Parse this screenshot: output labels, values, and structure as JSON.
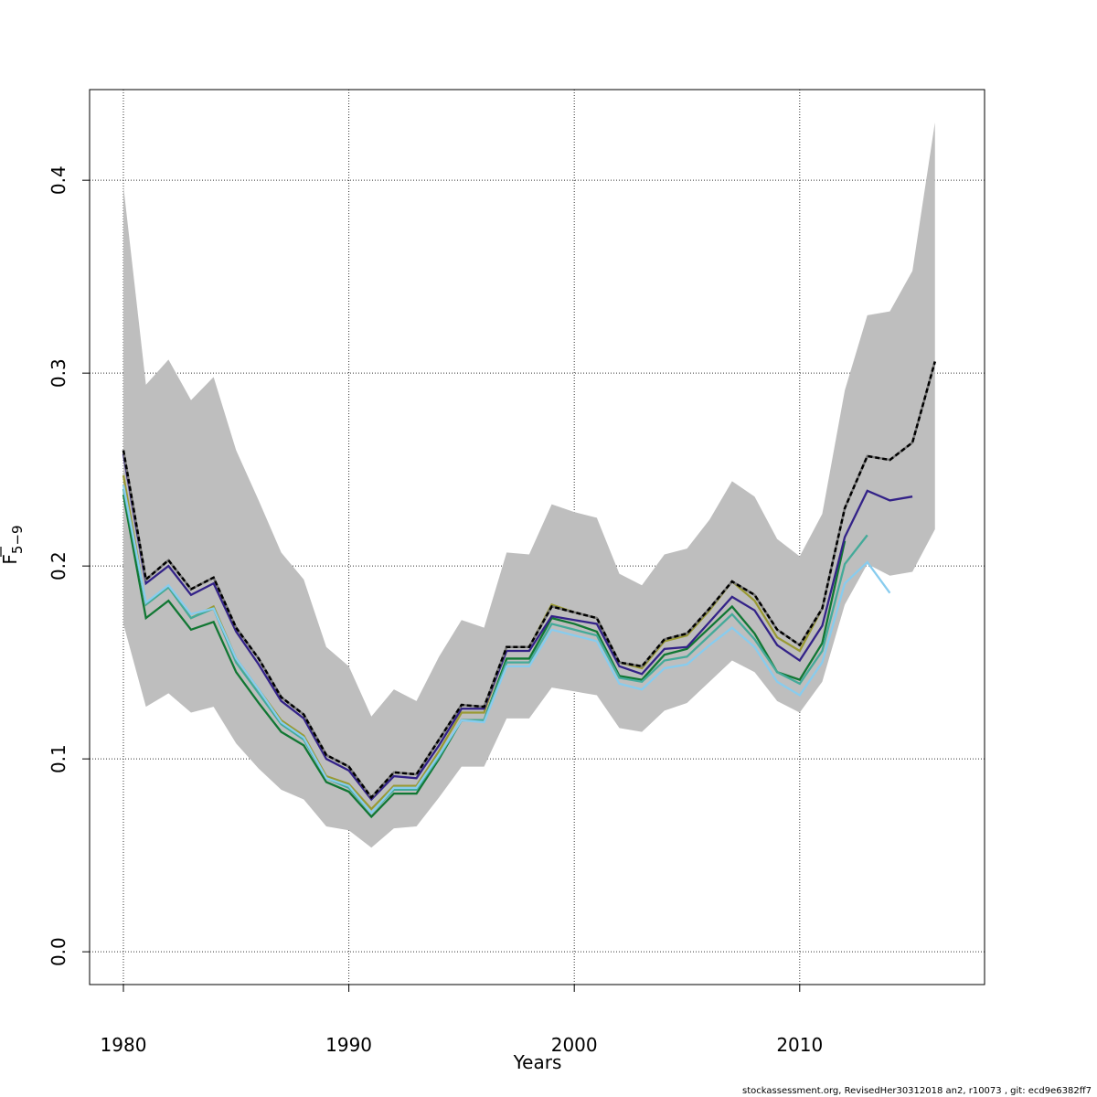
{
  "chart_data": {
    "type": "line",
    "xlabel": "Years",
    "ylabel": "F",
    "ylabel_bar": true,
    "ylabel_subscript": "5−9",
    "xlim": [
      1978.5,
      2018.2
    ],
    "ylim": [
      -0.017,
      0.447
    ],
    "xticks": [
      "1980",
      "1990",
      "2000",
      "2010"
    ],
    "yticks": [
      "0.0",
      "0.1",
      "0.2",
      "0.3",
      "0.4"
    ],
    "grid": true,
    "years": [
      1980,
      1981,
      1982,
      1983,
      1984,
      1985,
      1986,
      1987,
      1988,
      1989,
      1990,
      1991,
      1992,
      1993,
      1994,
      1995,
      1996,
      1997,
      1998,
      1999,
      2000,
      2001,
      2002,
      2003,
      2004,
      2005,
      2006,
      2007,
      2008,
      2009,
      2010,
      2011,
      2012,
      2013,
      2014,
      2015,
      2016
    ],
    "confidence_band": {
      "color": "#BEBEBE",
      "lower": [
        0.17,
        0.127,
        0.134,
        0.124,
        0.127,
        0.108,
        0.095,
        0.084,
        0.079,
        0.065,
        0.063,
        0.054,
        0.064,
        0.065,
        0.08,
        0.096,
        0.096,
        0.121,
        0.121,
        0.137,
        0.135,
        0.133,
        0.116,
        0.114,
        0.125,
        0.129,
        0.14,
        0.151,
        0.145,
        0.13,
        0.124,
        0.14,
        0.18,
        0.201,
        0.195,
        0.197,
        0.219
      ],
      "upper": [
        0.397,
        0.294,
        0.307,
        0.286,
        0.298,
        0.26,
        0.234,
        0.207,
        0.193,
        0.158,
        0.148,
        0.122,
        0.136,
        0.13,
        0.153,
        0.172,
        0.168,
        0.207,
        0.206,
        0.232,
        0.228,
        0.225,
        0.196,
        0.19,
        0.206,
        0.209,
        0.224,
        0.244,
        0.236,
        0.214,
        0.205,
        0.227,
        0.291,
        0.33,
        0.332,
        0.353,
        0.43
      ]
    },
    "series": [
      {
        "color": "#999933",
        "dashed": false,
        "values": [
          0.247,
          0.18,
          0.189,
          0.173,
          0.179,
          0.152,
          0.136,
          0.12,
          0.112,
          0.091,
          0.087,
          0.074,
          0.086,
          0.086,
          0.104,
          0.124,
          0.124,
          0.158,
          0.158,
          0.18,
          0.176,
          0.173,
          0.15,
          0.147,
          0.161,
          0.164,
          0.177,
          0.192,
          0.182,
          0.163,
          0.156,
          0.178
        ]
      },
      {
        "color": "#117733",
        "dashed": false,
        "values": [
          0.237,
          0.173,
          0.182,
          0.167,
          0.171,
          0.145,
          0.129,
          0.114,
          0.107,
          0.088,
          0.083,
          0.07,
          0.082,
          0.082,
          0.1,
          0.12,
          0.12,
          0.152,
          0.152,
          0.173,
          0.17,
          0.166,
          0.143,
          0.141,
          0.154,
          0.157,
          0.168,
          0.179,
          0.165,
          0.145,
          0.141,
          0.16,
          0.213
        ]
      },
      {
        "color": "#44AA99",
        "dashed": false,
        "values": [
          0.24,
          0.18,
          0.189,
          0.173,
          0.178,
          0.15,
          0.134,
          0.118,
          0.11,
          0.09,
          0.085,
          0.072,
          0.084,
          0.084,
          0.101,
          0.12,
          0.12,
          0.15,
          0.15,
          0.17,
          0.167,
          0.164,
          0.142,
          0.14,
          0.151,
          0.153,
          0.164,
          0.175,
          0.162,
          0.145,
          0.139,
          0.156,
          0.201,
          0.216
        ]
      },
      {
        "color": "#88CCEE",
        "dashed": false,
        "values": [
          0.242,
          0.181,
          0.19,
          0.175,
          0.178,
          0.152,
          0.136,
          0.119,
          0.111,
          0.09,
          0.086,
          0.072,
          0.085,
          0.085,
          0.102,
          0.12,
          0.119,
          0.148,
          0.148,
          0.167,
          0.164,
          0.161,
          0.139,
          0.136,
          0.147,
          0.149,
          0.159,
          0.168,
          0.158,
          0.14,
          0.133,
          0.15,
          0.191,
          0.202,
          0.186
        ]
      },
      {
        "color": "#332288",
        "dashed": false,
        "values": [
          0.258,
          0.191,
          0.2,
          0.185,
          0.191,
          0.166,
          0.149,
          0.13,
          0.121,
          0.1,
          0.094,
          0.079,
          0.091,
          0.09,
          0.107,
          0.126,
          0.126,
          0.156,
          0.156,
          0.174,
          0.172,
          0.17,
          0.148,
          0.144,
          0.157,
          0.158,
          0.171,
          0.184,
          0.177,
          0.159,
          0.151,
          0.169,
          0.215,
          0.239,
          0.234,
          0.236
        ]
      },
      {
        "color": "#000000",
        "dashed": true,
        "values": [
          0.26,
          0.193,
          0.203,
          0.188,
          0.194,
          0.168,
          0.152,
          0.132,
          0.123,
          0.102,
          0.096,
          0.08,
          0.093,
          0.092,
          0.11,
          0.128,
          0.127,
          0.158,
          0.158,
          0.179,
          0.176,
          0.173,
          0.15,
          0.148,
          0.162,
          0.165,
          0.178,
          0.192,
          0.185,
          0.167,
          0.159,
          0.178,
          0.23,
          0.257,
          0.255,
          0.264,
          0.306
        ]
      }
    ]
  },
  "footer": "stockassessment.org, RevisedHer30312018  an2, r10073 , git: ecd9e6382ff7"
}
